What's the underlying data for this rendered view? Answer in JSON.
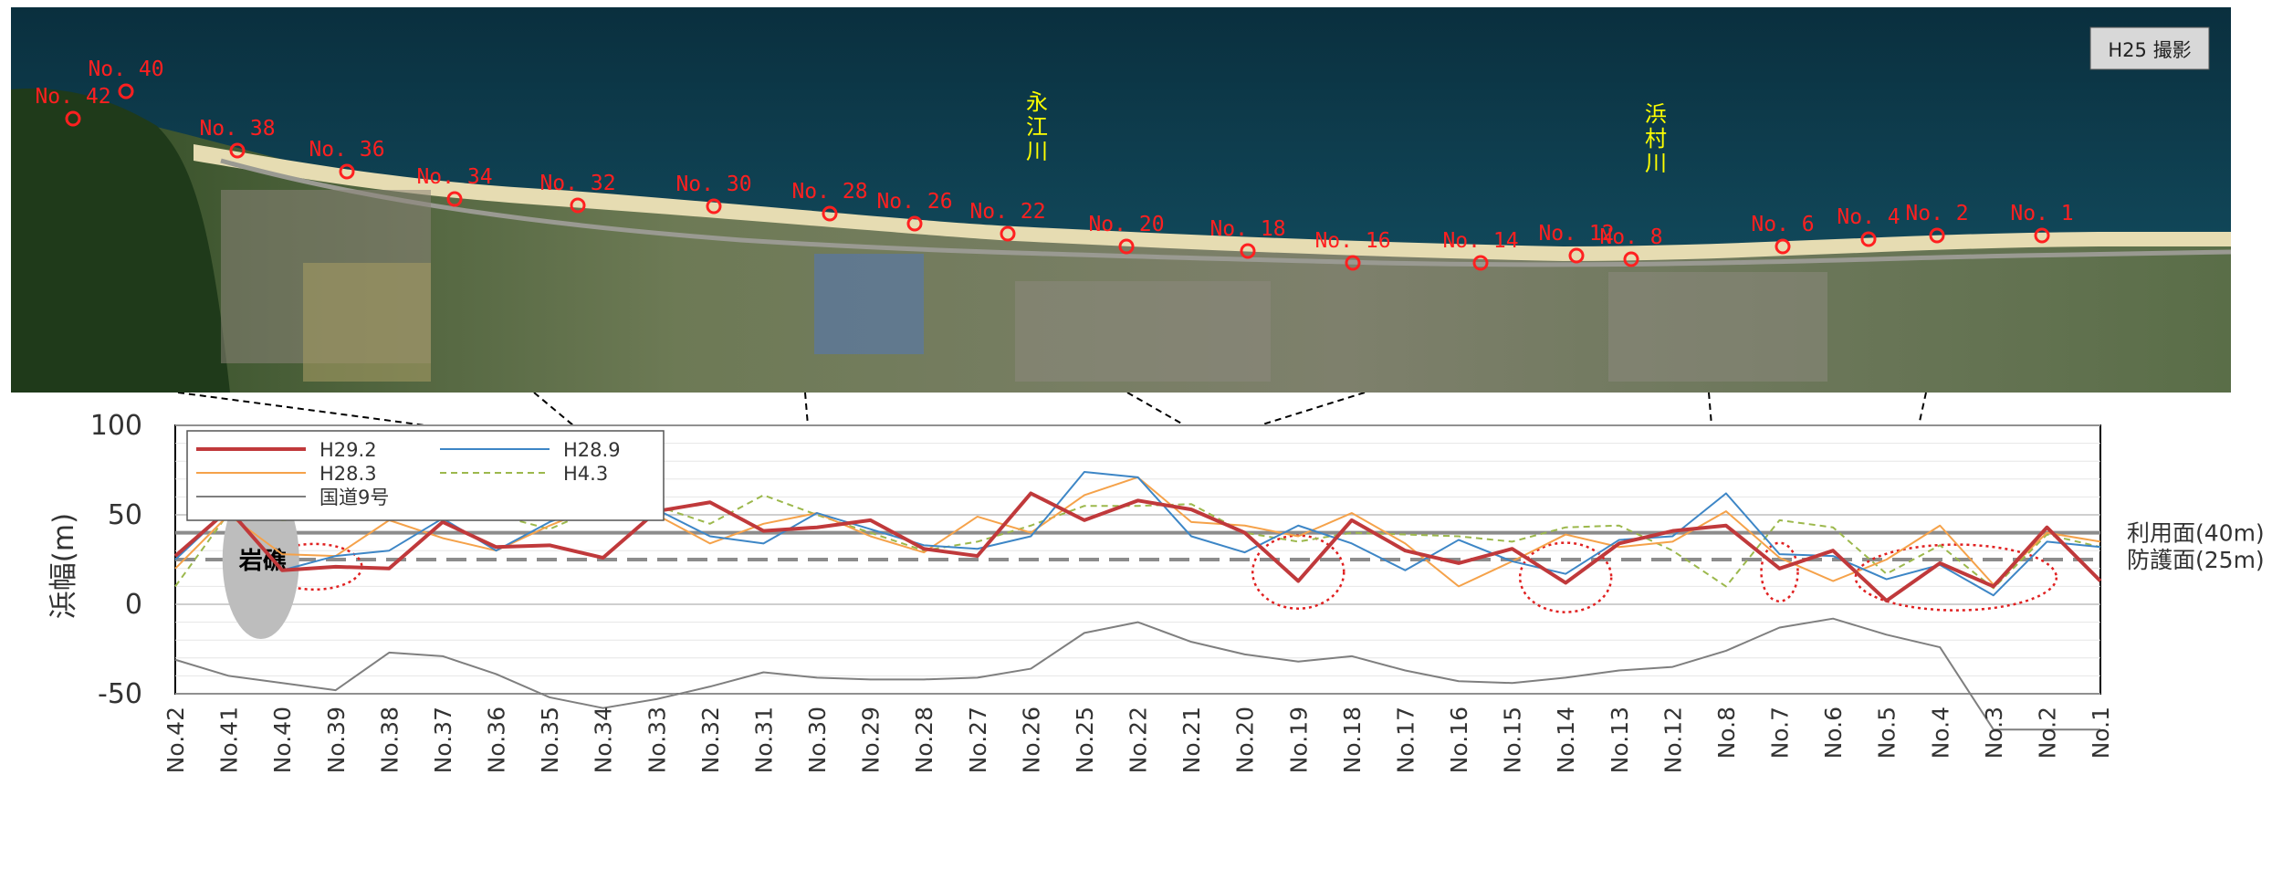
{
  "photo": {
    "badge": "H25 撮影",
    "rivers": [
      {
        "name": "永江川",
        "lines": [
          "永",
          "江",
          "川"
        ]
      },
      {
        "name": "浜村川",
        "lines": [
          "浜",
          "村",
          "川"
        ]
      }
    ],
    "points": [
      "No. 42",
      "No. 40",
      "No. 38",
      "No. 36",
      "No. 34",
      "No. 32",
      "No. 30",
      "No. 28",
      "No. 26",
      "No. 22",
      "No. 20",
      "No. 18",
      "No. 16",
      "No. 14",
      "No. 12",
      "No. 8",
      "No. 6",
      "No. 4",
      "No. 2",
      "No. 1"
    ],
    "colors": {
      "point_marker": "#ff2020",
      "river_label": "#ffff00",
      "sea": "#0e3a4c",
      "beach": "#e8dcb0",
      "land": "#4a6a38"
    }
  },
  "chart_data": {
    "type": "line",
    "ylabel": "浜幅(m)",
    "ylim": [
      -50,
      100
    ],
    "yticks": [
      100,
      50,
      0,
      -50
    ],
    "categories": [
      "No.42",
      "No.41",
      "No.40",
      "No.39",
      "No.38",
      "No.37",
      "No.36",
      "No.35",
      "No.34",
      "No.33",
      "No.32",
      "No.31",
      "No.30",
      "No.29",
      "No.28",
      "No.27",
      "No.26",
      "No.25",
      "No.22",
      "No.21",
      "No.20",
      "No.19",
      "No.18",
      "No.17",
      "No.16",
      "No.15",
      "No.14",
      "No.13",
      "No.12",
      "No.8",
      "No.7",
      "No.6",
      "No.5",
      "No.4",
      "No.3",
      "No.2",
      "No.1"
    ],
    "series": [
      {
        "name": "H29.2",
        "color": "#c0393b",
        "dash": "solid",
        "values": [
          27,
          53,
          19,
          21,
          20,
          46,
          32,
          33,
          26,
          52,
          57,
          41,
          43,
          47,
          31,
          27,
          62,
          47,
          58,
          53,
          40,
          13,
          47,
          30,
          23,
          31,
          12,
          34,
          41,
          44,
          20,
          30,
          2,
          23,
          10,
          43,
          13
        ]
      },
      {
        "name": "H28.9",
        "color": "#3d86c6",
        "dash": "solid",
        "values": [
          25,
          53,
          19,
          27,
          30,
          48,
          30,
          46,
          57,
          53,
          38,
          34,
          51,
          42,
          33,
          31,
          38,
          74,
          71,
          38,
          29,
          44,
          34,
          19,
          36,
          24,
          17,
          36,
          38,
          62,
          28,
          27,
          14,
          22,
          5,
          35,
          32
        ]
      },
      {
        "name": "H28.3",
        "color": "#f5a24a",
        "dash": "solid",
        "values": [
          20,
          50,
          28,
          27,
          47,
          37,
          30,
          44,
          56,
          50,
          34,
          45,
          51,
          38,
          29,
          49,
          40,
          61,
          71,
          46,
          44,
          38,
          51,
          34,
          10,
          24,
          39,
          32,
          35,
          52,
          26,
          13,
          25,
          44,
          11,
          40,
          35
        ]
      },
      {
        "name": "H4.3",
        "color": "#9cb84c",
        "dash": "dashed",
        "values": [
          10,
          51,
          47,
          48,
          48,
          49,
          50,
          42,
          55,
          55,
          45,
          61,
          50,
          40,
          30,
          35,
          44,
          55,
          55,
          56,
          40,
          35,
          40,
          39,
          38,
          35,
          43,
          44,
          30,
          10,
          47,
          43,
          17,
          33,
          9,
          39,
          32
        ]
      },
      {
        "name": "国道9号",
        "color": "#7f7f7f",
        "dash": "solid",
        "values": [
          -31,
          -40,
          -44,
          -48,
          -27,
          -29,
          -39,
          -52,
          -58,
          -53,
          -46,
          -38,
          -41,
          -42,
          -42,
          -41,
          -36,
          -16,
          -10,
          -21,
          -28,
          -32,
          -29,
          -37,
          -43,
          -44,
          -41,
          -37,
          -35,
          -26,
          -13,
          -8,
          -17,
          -24,
          -70,
          -70,
          -70
        ]
      }
    ],
    "reference_lines": [
      {
        "label": "利用面(40m)",
        "value": 40,
        "style": "solid",
        "color": "#8c8c8c"
      },
      {
        "label": "防護面(25m)",
        "value": 25,
        "style": "dashed",
        "color": "#8c8c8c"
      }
    ],
    "annotations": [
      {
        "text": "岩礁",
        "category_index": 1.6,
        "value": 25
      }
    ],
    "highlights": [
      {
        "center_index": 2.6,
        "value": 21
      },
      {
        "center_index": 21,
        "value": 18
      },
      {
        "center_index": 26,
        "value": 15
      },
      {
        "center_index": 30,
        "value": 18
      },
      {
        "center_index": 33.3,
        "value": 15
      }
    ],
    "legend_placement": "top-left",
    "grid": true
  }
}
